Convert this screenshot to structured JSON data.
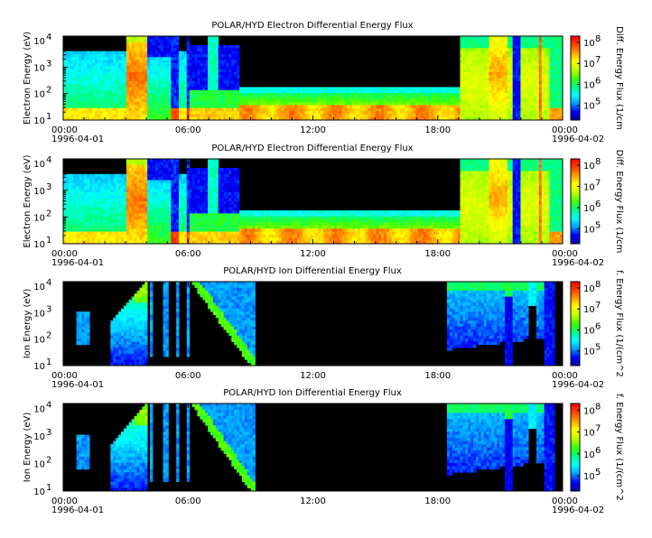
{
  "chart_data": [
    {
      "type": "heatmap",
      "title": "POLAR/HYD  Electron Differential Energy Flux",
      "ylabel": "Electron Energy (eV)",
      "x_ticks": [
        "00:00",
        "06:00",
        "12:00",
        "18:00",
        "00:00"
      ],
      "x_dates": [
        "1996-04-01",
        "1996-04-02"
      ],
      "y_tick_exponents": [
        "1",
        "2",
        "3",
        "4"
      ],
      "y_scale": "log",
      "ylim": [
        10,
        15000
      ],
      "colorbar_label": "Diff. Energy Flux (1/cm",
      "colorbar_exponents": [
        "5",
        "6",
        "7",
        "8"
      ],
      "colorbar_range": [
        20000,
        200000000
      ],
      "colormap": [
        "#0000a0",
        "#0000ff",
        "#00a0ff",
        "#00ffff",
        "#00ff80",
        "#40ff00",
        "#c0ff00",
        "#ffff00",
        "#ffa000",
        "#ff4000",
        "#ff0000"
      ]
    },
    {
      "type": "heatmap",
      "title": "POLAR/HYD  Electron Differential Energy Flux",
      "ylabel": "Electron Energy (eV)",
      "x_ticks": [
        "00:00",
        "06:00",
        "12:00",
        "18:00",
        "00:00"
      ],
      "x_dates": [
        "1996-04-01",
        "1996-04-02"
      ],
      "y_tick_exponents": [
        "1",
        "2",
        "3",
        "4"
      ],
      "y_scale": "log",
      "ylim": [
        10,
        15000
      ],
      "colorbar_label": "Diff. Energy Flux (1/cm",
      "colorbar_exponents": [
        "5",
        "6",
        "7",
        "8"
      ],
      "colorbar_range": [
        20000,
        200000000
      ],
      "colormap": [
        "#0000a0",
        "#0000ff",
        "#00a0ff",
        "#00ffff",
        "#00ff80",
        "#40ff00",
        "#c0ff00",
        "#ffff00",
        "#ffa000",
        "#ff4000",
        "#ff0000"
      ]
    },
    {
      "type": "heatmap",
      "title": "POLAR/HYD  Ion Differential Energy Flux",
      "ylabel": "Ion Energy (eV)",
      "x_ticks": [
        "00:00",
        "06:00",
        "12:00",
        "18:00",
        "00:00"
      ],
      "x_dates": [
        "1996-04-01",
        "1996-04-02"
      ],
      "y_tick_exponents": [
        "1",
        "2",
        "3",
        "4"
      ],
      "y_scale": "log",
      "ylim": [
        10,
        15000
      ],
      "colorbar_label": "f. Energy Flux (1/(cm^2",
      "colorbar_exponents": [
        "5",
        "6",
        "7",
        "8"
      ],
      "colorbar_range": [
        20000,
        200000000
      ],
      "colormap": [
        "#0000a0",
        "#0000ff",
        "#00a0ff",
        "#00ffff",
        "#00ff80",
        "#40ff00",
        "#c0ff00",
        "#ffff00",
        "#ffa000",
        "#ff4000",
        "#ff0000"
      ]
    },
    {
      "type": "heatmap",
      "title": "POLAR/HYD  Ion Differential Energy Flux",
      "ylabel": "Ion Energy (eV)",
      "x_ticks": [
        "00:00",
        "06:00",
        "12:00",
        "18:00",
        "00:00"
      ],
      "x_dates": [
        "1996-04-01",
        "1996-04-02"
      ],
      "y_tick_exponents": [
        "1",
        "2",
        "3",
        "4"
      ],
      "y_scale": "log",
      "ylim": [
        10,
        15000
      ],
      "colorbar_label": "f. Energy Flux (1/(cm^2",
      "colorbar_exponents": [
        "5",
        "6",
        "7",
        "8"
      ],
      "colorbar_range": [
        20000,
        200000000
      ],
      "colormap": [
        "#0000a0",
        "#0000ff",
        "#00a0ff",
        "#00ffff",
        "#00ff80",
        "#40ff00",
        "#c0ff00",
        "#ffff00",
        "#ffa000",
        "#ff4000",
        "#ff0000"
      ]
    }
  ]
}
